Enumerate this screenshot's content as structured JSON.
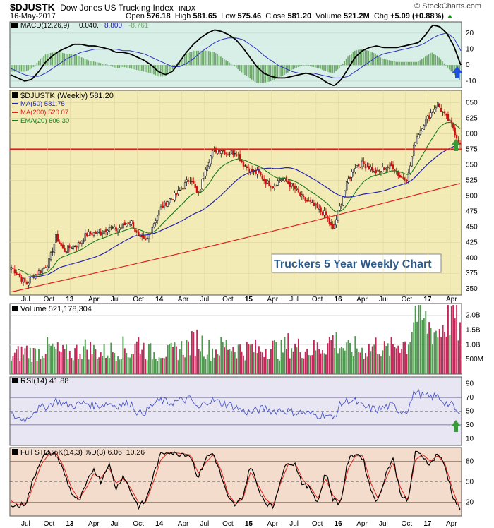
{
  "header": {
    "symbol": "$DJUSTK",
    "name": "Dow Jones US Trucking Index",
    "exchange": "INDX",
    "date": "16-May-2017",
    "open_label": "Open",
    "open": "576.18",
    "high_label": "High",
    "high": "581.65",
    "low_label": "Low",
    "low": "575.46",
    "close_label": "Close",
    "close": "581.20",
    "volume_label": "Volume",
    "volume": "521.2M",
    "chg_label": "Chg",
    "chg": "+5.09 (+0.88%)",
    "chg_arrow": "▲",
    "brand": "© StockCharts.com"
  },
  "colors": {
    "panel_green": "#d7efe6",
    "price_bg": "#f2ebb6",
    "rsi_bg": "#e9e6f3",
    "sto_bg": "#f3dccb",
    "ma50": "#2323b0",
    "ma200": "#e0201c",
    "ema20": "#1a7a1a",
    "support": "#e0201c",
    "arrow_blue": "#1f4fe0",
    "arrow_green": "#3a9a3a"
  },
  "annotation": "Truckers 5 Year Weekly Chart",
  "chart_data": [
    {
      "type": "line",
      "panel": "macd",
      "legend": {
        "label": "MACD(12,26,9)",
        "macd": "0.040,",
        "signal": "8.800,",
        "hist": "-8.761"
      },
      "y_ticks": [
        "20",
        "10",
        "0",
        "-10"
      ],
      "ylim": [
        -14,
        27
      ],
      "series": [
        {
          "key": "macd",
          "values": [
            -6,
            -8,
            -10,
            -9,
            -4,
            2,
            6,
            9,
            11,
            13,
            13,
            12,
            12,
            11,
            10,
            8,
            8,
            7,
            5,
            3,
            0,
            -4,
            -6,
            -4,
            2,
            8,
            13,
            17,
            20,
            22,
            21,
            19,
            16,
            11,
            5,
            -1,
            -5,
            -7,
            -8,
            -8,
            -7,
            -6,
            -5,
            -6,
            -8,
            -11,
            -13,
            -9,
            -2,
            5,
            9,
            11,
            12,
            11,
            11,
            11,
            12,
            13,
            14,
            19,
            25,
            24,
            20,
            12,
            0
          ]
        },
        {
          "key": "signal",
          "values": [
            -2,
            -4,
            -6,
            -7,
            -7,
            -5,
            -2,
            1,
            4,
            6,
            8,
            9,
            10,
            10,
            10,
            10,
            9,
            9,
            8,
            7,
            5,
            3,
            1,
            -1,
            -1,
            1,
            4,
            8,
            11,
            14,
            16,
            17,
            17,
            16,
            13,
            10,
            6,
            3,
            0,
            -2,
            -4,
            -5,
            -5,
            -5,
            -6,
            -7,
            -8,
            -8,
            -7,
            -4,
            -1,
            2,
            5,
            7,
            8,
            9,
            10,
            11,
            12,
            14,
            17,
            19,
            20,
            17,
            9
          ]
        }
      ],
      "hist": [
        -4,
        -4,
        -4,
        -2,
        3,
        7,
        8,
        8,
        7,
        7,
        5,
        3,
        2,
        1,
        0,
        -2,
        -1,
        -2,
        -3,
        -4,
        -5,
        -7,
        -7,
        -3,
        3,
        7,
        9,
        9,
        9,
        8,
        5,
        2,
        -1,
        -5,
        -8,
        -11,
        -11,
        -10,
        -8,
        -6,
        -3,
        -1,
        0,
        -1,
        -2,
        -4,
        -5,
        -1,
        5,
        9,
        10,
        9,
        7,
        4,
        3,
        2,
        2,
        2,
        2,
        5,
        8,
        5,
        0,
        -5,
        -9
      ]
    },
    {
      "type": "candlestick",
      "panel": "price",
      "title": "$DJUSTK (Weekly) 581.20",
      "legend": [
        {
          "label": "MA(50) 581.75",
          "color": "#2323b0"
        },
        {
          "label": "MA(200) 520.07",
          "color": "#e0201c"
        },
        {
          "label": "EMA(20) 606.30",
          "color": "#1a7a1a"
        }
      ],
      "ylim": [
        340,
        670
      ],
      "y_ticks": [
        "650",
        "625",
        "600",
        "575",
        "550",
        "525",
        "500",
        "475",
        "450",
        "425",
        "400",
        "375",
        "350"
      ],
      "support": 575,
      "n_weeks": 262,
      "closes_monthly": [
        385,
        372,
        357,
        372,
        380,
        392,
        434,
        411,
        418,
        422,
        437,
        440,
        440,
        450,
        445,
        452,
        460,
        432,
        426,
        455,
        480,
        493,
        501,
        515,
        530,
        498,
        548,
        572,
        575,
        568,
        572,
        552,
        540,
        537,
        523,
        516,
        528,
        521,
        510,
        495,
        488,
        478,
        470,
        444,
        485,
        525,
        548,
        552,
        545,
        537,
        546,
        548,
        530,
        528,
        590,
        614,
        632,
        648,
        628,
        612,
        581
      ],
      "ma50_monthly": [
        null,
        null,
        null,
        null,
        null,
        null,
        null,
        null,
        null,
        null,
        null,
        null,
        null,
        null,
        null,
        null,
        null,
        null,
        null,
        null,
        null,
        null,
        null,
        null,
        null,
        null,
        null,
        null,
        null,
        null,
        null,
        null,
        null,
        null,
        null,
        null,
        null,
        null,
        null,
        null,
        null,
        null,
        null,
        null,
        null,
        null,
        null,
        null,
        null,
        null,
        null,
        null,
        null,
        null,
        null,
        null,
        null,
        null,
        null,
        null,
        null
      ],
      "ema20_monthly": [
        null,
        null,
        null,
        null,
        null,
        null,
        null,
        null,
        null,
        null,
        null,
        null,
        null,
        null,
        null,
        null,
        null,
        null,
        null,
        null,
        null,
        null,
        null,
        null,
        null,
        null,
        null,
        null,
        null,
        null,
        null,
        null,
        null,
        null,
        null,
        null,
        null,
        null,
        null,
        null,
        null,
        null,
        null,
        null,
        null,
        null,
        null,
        null,
        null,
        null,
        null,
        null,
        null,
        null,
        null,
        null,
        null,
        null,
        null,
        null,
        null
      ],
      "ma200_monthly": [
        null,
        null,
        null,
        null,
        null,
        null,
        null,
        null,
        null,
        null,
        null,
        null,
        null,
        null,
        null,
        null,
        null,
        null,
        null,
        null,
        null,
        null,
        null,
        null,
        null,
        null,
        null,
        null,
        null,
        null,
        null,
        null,
        null,
        null,
        null,
        null,
        null,
        null,
        null,
        null,
        null,
        null,
        null,
        null,
        null,
        null,
        null,
        null,
        null,
        null,
        null,
        null,
        null,
        null,
        null,
        null,
        null,
        null,
        null,
        null,
        null
      ]
    },
    {
      "type": "bar",
      "panel": "volume",
      "title": "Volume 521,178,304",
      "y_ticks": [
        "2.0B",
        "1.5B",
        "1.0B",
        "500M"
      ],
      "ylim": [
        0,
        2.4
      ],
      "unit": "B",
      "values_monthly": [
        0.6,
        0.7,
        0.8,
        0.7,
        0.8,
        0.9,
        0.8,
        0.7,
        0.7,
        0.8,
        0.9,
        0.8,
        0.7,
        0.8,
        0.8,
        0.9,
        0.7,
        1.1,
        0.8,
        0.7,
        0.8,
        0.7,
        0.8,
        0.9,
        1.0,
        1.2,
        0.9,
        0.8,
        0.9,
        1.0,
        0.9,
        0.8,
        0.9,
        0.8,
        0.9,
        0.9,
        0.8,
        1.0,
        0.9,
        0.9,
        0.8,
        0.9,
        1.0,
        1.2,
        1.0,
        0.8,
        0.9,
        0.8,
        0.9,
        1.0,
        0.8,
        0.9,
        1.1,
        1.0,
        2.2,
        1.8,
        1.6,
        1.4,
        1.8,
        2.2,
        1.5
      ]
    },
    {
      "type": "line",
      "panel": "rsi",
      "title": "RSI(14) 41.88",
      "y_ticks": [
        "90",
        "70",
        "50",
        "30",
        "10"
      ],
      "ylim": [
        0,
        100
      ],
      "levels": [
        70,
        30
      ],
      "values_monthly": [
        44,
        40,
        38,
        50,
        55,
        58,
        66,
        60,
        58,
        60,
        62,
        58,
        59,
        62,
        58,
        60,
        62,
        46,
        50,
        60,
        66,
        62,
        64,
        66,
        68,
        52,
        64,
        66,
        62,
        60,
        56,
        50,
        48,
        52,
        54,
        50,
        52,
        50,
        48,
        48,
        46,
        44,
        46,
        38,
        60,
        66,
        64,
        56,
        54,
        52,
        56,
        58,
        50,
        52,
        80,
        72,
        70,
        72,
        62,
        58,
        42
      ]
    },
    {
      "type": "line",
      "panel": "sto",
      "title": "Full STO %K(14,3) %D(3) 6.06, 10.26",
      "y_ticks": [
        "80",
        "50",
        "20"
      ],
      "ylim": [
        0,
        100
      ],
      "levels": [
        80,
        20
      ],
      "k_monthly": [
        18,
        14,
        20,
        55,
        85,
        92,
        90,
        65,
        35,
        20,
        45,
        70,
        50,
        78,
        40,
        60,
        35,
        14,
        22,
        60,
        90,
        95,
        90,
        92,
        88,
        55,
        85,
        92,
        60,
        25,
        15,
        30,
        75,
        40,
        20,
        12,
        55,
        80,
        75,
        45,
        40,
        20,
        65,
        25,
        18,
        80,
        92,
        85,
        40,
        20,
        60,
        85,
        35,
        18,
        92,
        88,
        75,
        92,
        72,
        30,
        8
      ],
      "d_monthly": [
        22,
        16,
        18,
        45,
        75,
        90,
        92,
        72,
        42,
        25,
        40,
        62,
        55,
        72,
        48,
        55,
        40,
        20,
        20,
        50,
        82,
        93,
        92,
        91,
        89,
        62,
        78,
        90,
        68,
        32,
        18,
        26,
        65,
        45,
        25,
        15,
        48,
        75,
        76,
        52,
        42,
        25,
        55,
        30,
        20,
        68,
        88,
        88,
        50,
        26,
        52,
        78,
        42,
        22,
        82,
        90,
        80,
        88,
        76,
        38,
        10
      ]
    }
  ],
  "x_axis": {
    "labels": [
      "Jul",
      "Oct",
      "13",
      "Apr",
      "Jul",
      "Oct",
      "14",
      "Apr",
      "Jul",
      "Oct",
      "15",
      "Apr",
      "Jul",
      "Oct",
      "16",
      "Apr",
      "Jul",
      "Oct",
      "17",
      "Apr"
    ],
    "bold": [
      "13",
      "14",
      "15",
      "16",
      "17"
    ]
  }
}
